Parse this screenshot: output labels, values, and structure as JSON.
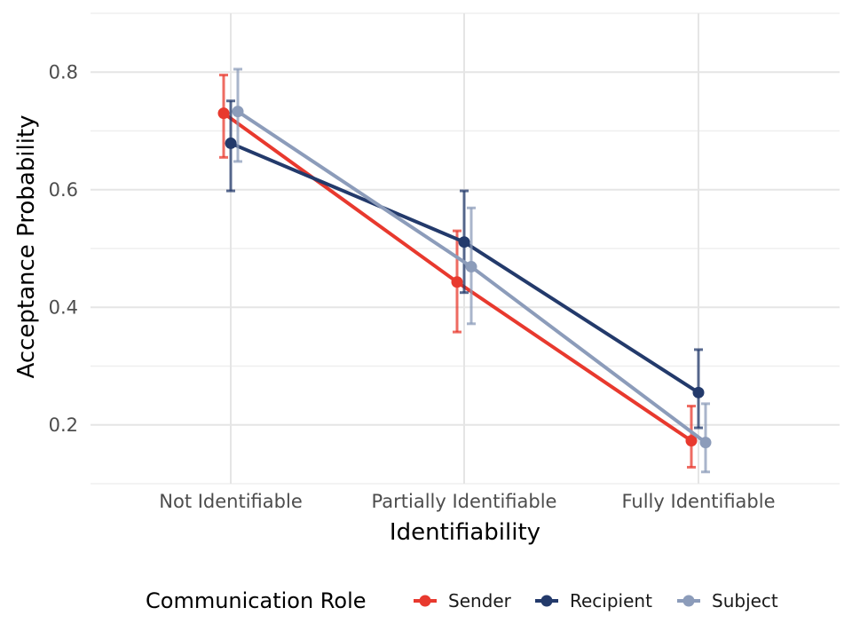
{
  "chart_data": {
    "type": "line",
    "title": "",
    "xlabel": "Identifiability",
    "ylabel": "Acceptance Probability",
    "categories": [
      "Not Identifiable",
      "Partially Identifiable",
      "Fully Identifiable"
    ],
    "ylim": [
      0.1,
      0.9
    ],
    "yticks": [
      0.2,
      0.4,
      0.6,
      0.8
    ],
    "ytick_labels": [
      "0.2",
      "0.4",
      "0.6",
      "0.8"
    ],
    "grid": true,
    "legend_title": "Communication Role",
    "legend_position": "bottom",
    "series": [
      {
        "name": "Sender",
        "color": "#e8392e",
        "values": [
          0.73,
          0.443,
          0.173
        ],
        "lower": [
          0.655,
          0.358,
          0.128
        ],
        "upper": [
          0.795,
          0.53,
          0.232
        ]
      },
      {
        "name": "Recipient",
        "color": "#233a6b",
        "values": [
          0.679,
          0.511,
          0.255
        ],
        "lower": [
          0.598,
          0.425,
          0.195
        ],
        "upper": [
          0.751,
          0.598,
          0.328
        ]
      },
      {
        "name": "Subject",
        "color": "#8c9cba",
        "values": [
          0.733,
          0.469,
          0.17
        ],
        "lower": [
          0.648,
          0.372,
          0.12
        ],
        "upper": [
          0.805,
          0.569,
          0.236
        ]
      }
    ]
  }
}
